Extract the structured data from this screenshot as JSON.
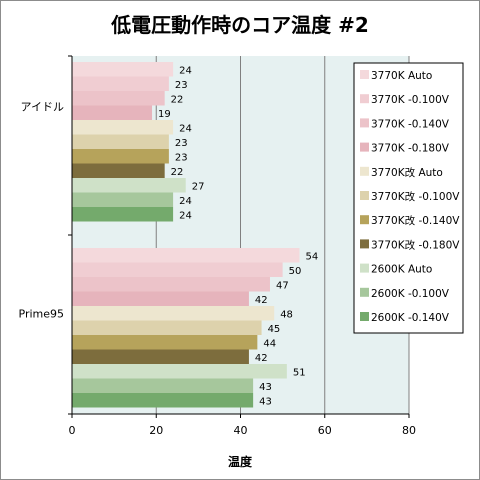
{
  "chart_data": {
    "type": "bar",
    "orientation": "horizontal",
    "title": "低電圧動作時のコア温度 #2",
    "xlabel": "温度",
    "ylabel": "",
    "xlim": [
      0,
      80
    ],
    "xticks": [
      "0",
      "20",
      "40",
      "60",
      "80"
    ],
    "grid": true,
    "legend_position": "right",
    "categories": [
      "アイドル",
      "Prime95"
    ],
    "series": [
      {
        "name": "3770K Auto",
        "color": "#f4d9dc",
        "values": [
          24,
          54
        ]
      },
      {
        "name": "3770K -0.100V",
        "color": "#f0cdd2",
        "values": [
          23,
          50
        ]
      },
      {
        "name": "3770K -0.140V",
        "color": "#ecc3c9",
        "values": [
          22,
          47
        ]
      },
      {
        "name": "3770K -0.180V",
        "color": "#e6b4bc",
        "values": [
          19,
          42
        ]
      },
      {
        "name": "3770K改 Auto",
        "color": "#ede6cf",
        "values": [
          24,
          48
        ]
      },
      {
        "name": "3770K改 -0.100V",
        "color": "#ddd2ac",
        "values": [
          23,
          45
        ]
      },
      {
        "name": "3770K改 -0.140V",
        "color": "#b6a35b",
        "values": [
          23,
          44
        ]
      },
      {
        "name": "3770K改 -0.180V",
        "color": "#7d6d3d",
        "values": [
          22,
          42
        ]
      },
      {
        "name": "2600K Auto",
        "color": "#cfe1c8",
        "values": [
          27,
          51
        ]
      },
      {
        "name": "2600K -0.100V",
        "color": "#a6c79c",
        "values": [
          24,
          43
        ]
      },
      {
        "name": "2600K -0.140V",
        "color": "#74aa6c",
        "values": [
          24,
          43
        ]
      }
    ]
  }
}
